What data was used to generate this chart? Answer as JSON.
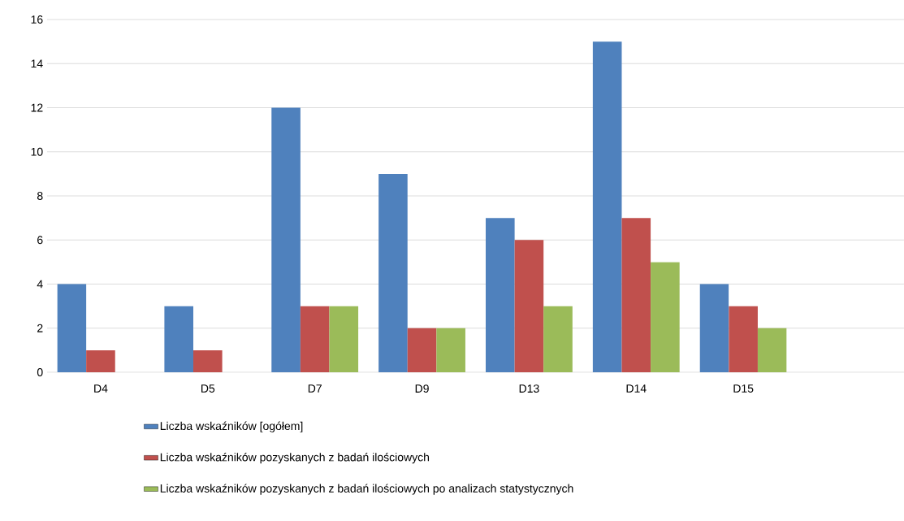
{
  "chart_data": {
    "type": "bar",
    "categories": [
      "D4",
      "D5",
      "D7",
      "D9",
      "D13",
      "D14",
      "D15",
      null
    ],
    "series": [
      {
        "name": "Liczba wskaźników [ogółem]",
        "color": "#4f81bd",
        "values": [
          4,
          3,
          12,
          9,
          7,
          15,
          4,
          null
        ]
      },
      {
        "name": "Liczba wskaźników pozyskanych z badań ilościowych",
        "color": "#c0504d",
        "values": [
          1,
          1,
          3,
          2,
          6,
          7,
          3,
          null
        ]
      },
      {
        "name": "Liczba wskaźników pozyskanych z badań ilościowych po analizach statystycznych",
        "color": "#9bbb59",
        "values": [
          0,
          0,
          3,
          2,
          3,
          5,
          2,
          null
        ]
      }
    ],
    "ylim": [
      0,
      16
    ],
    "yticks": [
      0,
      2,
      4,
      6,
      8,
      10,
      12,
      14,
      16
    ],
    "grid": "y",
    "legend": "bottom"
  }
}
